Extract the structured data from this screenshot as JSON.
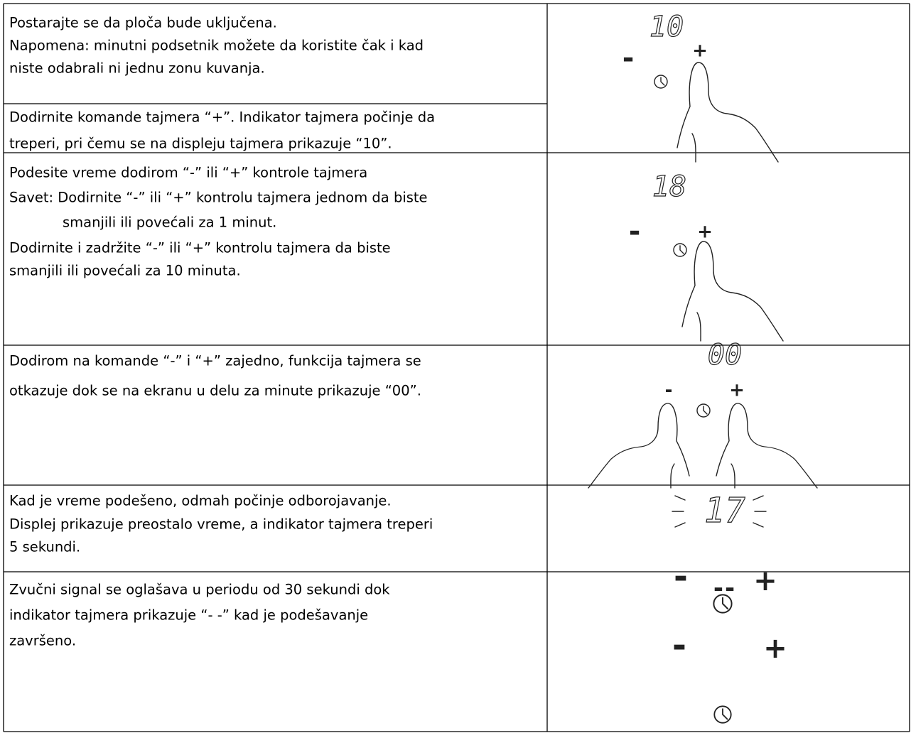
{
  "rows": [
    {
      "cells": [
        {
          "lines": [
            "Postarajte se da ploča bude uključena.",
            "Napomena: minutni podsetnik možete da koristite čak i kad",
            "niste odabrali ni jednu zonu kuvanja."
          ]
        },
        {
          "lines": [
            "Dodirnite komande tajmera “+”. Indikator tajmera počinje da",
            "treperi, pri čemu se na displeju tajmera prikazuje “10”."
          ]
        }
      ],
      "display": "10",
      "minus": "-",
      "plus": "+"
    },
    {
      "cells": [
        {
          "lines": [
            "Podesite vreme dodirom “-” ili “+” kontrole tajmera",
            "Savet: Dodirnite “-” ili “+” kontrolu tajmera jednom da biste",
            "smanjili ili povećali za 1 minut.",
            "Dodirnite i zadržite “-” ili “+” kontrolu tajmera da biste",
            "smanjili ili povećali za 10 minuta."
          ]
        }
      ],
      "display": "18",
      "minus": "-",
      "plus": "+"
    },
    {
      "cells": [
        {
          "lines": [
            "Dodirom na komande “-” i “+” zajedno, funkcija tajmera se",
            "otkazuje dok se na ekranu u delu za minute prikazuje “00”."
          ]
        }
      ],
      "display": "00",
      "minus": "-",
      "plus": "+"
    },
    {
      "cells": [
        {
          "lines": [
            "Kad je vreme podešeno, odmah počinje odborojavanje.",
            "Displej prikazuje preostalo vreme, a indikator tajmera treperi",
            "5 sekundi."
          ]
        }
      ],
      "display": "17",
      "minus": "-",
      "plus": "+"
    },
    {
      "cells": [
        {
          "lines": [
            "Zvučni signal se oglašava u periodu od 30 sekundi dok",
            "indikator tajmera prikazuje “- -” kad je podešavanje",
            "završeno."
          ]
        }
      ],
      "display": "--",
      "minus": "-",
      "plus": "+"
    }
  ]
}
